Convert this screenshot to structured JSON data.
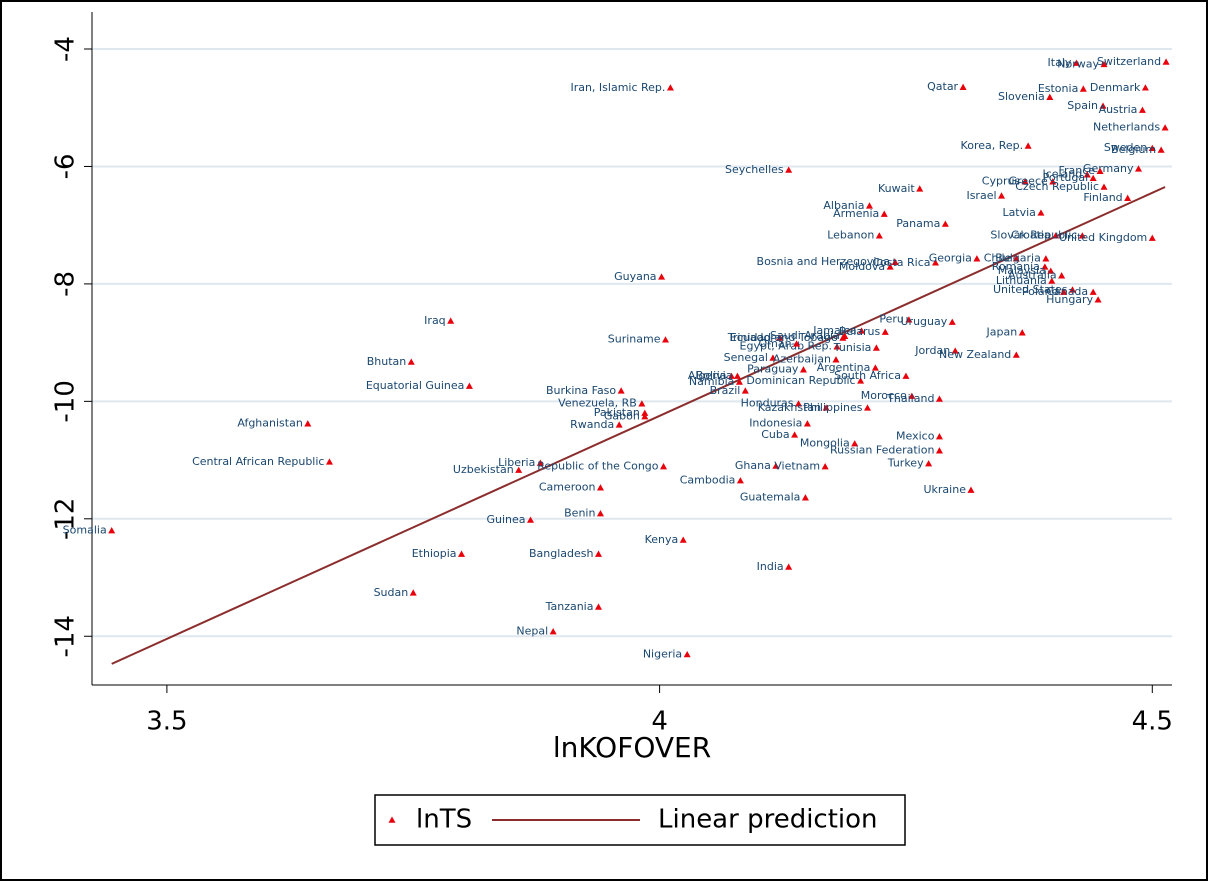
{
  "chart_data": {
    "type": "scatter",
    "xlabel": "lnKOFOVER",
    "xlim": [
      3.424,
      4.52
    ],
    "ylim": [
      -14.83,
      -3.37
    ],
    "xticks": [
      3.5,
      4,
      4.5
    ],
    "yticks": [
      -4,
      -6,
      -8,
      -10,
      -12,
      -14
    ],
    "grid": true,
    "series": [
      {
        "name": "lnTS",
        "type": "scatter",
        "color": "#e8000b",
        "labels": [
          "Somalia",
          "Afghanistan",
          "Central African Republic",
          "Bhutan",
          "Iraq",
          "Equatorial Guinea",
          "Ethiopia",
          "Sudan",
          "Uzbekistan",
          "Liberia",
          "Guinea",
          "Nepal",
          "Cameroon",
          "Benin",
          "Bangladesh",
          "Tanzania",
          "Burkina Faso",
          "Venezuela, RB",
          "Pakistan",
          "Gabon",
          "Rwanda",
          "Republic of the Congo",
          "Guyana",
          "Suriname",
          "Iran, Islamic Rep.",
          "Kenya",
          "Nigeria",
          "Algeria",
          "Bolivia",
          "Namibia",
          "Dominican Republic",
          "Brazil",
          "Honduras",
          "Kazakhstan",
          "Philippines",
          "Indonesia",
          "Cuba",
          "Mongolia",
          "Russian Federation",
          "Mexico",
          "Turkey",
          "Ukraine",
          "Ghana",
          "Vietnam",
          "Cambodia",
          "Guatemala",
          "India",
          "Morocco",
          "Thailand",
          "South Africa",
          "Argentina",
          "Paraguay",
          "Senegal",
          "Azerbaijan",
          "Egypt, Arab Rep.",
          "Tunisia",
          "Oman",
          "Ecuador",
          "Jordan",
          "New Zealand",
          "Japan",
          "Peru",
          "Uruguay",
          "Jamaica",
          "Belarus",
          "Trinidad and Tobago",
          "Saudi Arabia",
          "Bosnia and Herzegovina",
          "Moldova",
          "Costa Rica",
          "Georgia",
          "Lebanon",
          "Armenia",
          "Albania",
          "Panama",
          "Kuwait",
          "Seychelles",
          "Qatar",
          "Korea, Rep.",
          "Slovenia",
          "Estonia",
          "Italy",
          "Norway",
          "Switzerland",
          "Denmark",
          "Spain",
          "Austria",
          "Netherlands",
          "Sweden",
          "Belgium",
          "Germany",
          "France",
          "Cyprus",
          "Greece",
          "Iceland",
          "Portugal",
          "Czech Republic",
          "Finland",
          "Israel",
          "Latvia",
          "Croatia",
          "Slovak Republic",
          "United Kingdom",
          "Chile",
          "Bulgaria",
          "Romania",
          "Malaysia",
          "Australia",
          "Lithuania",
          "United States",
          "Poland",
          "Canada",
          "Hungary"
        ],
        "x": [
          3.444,
          3.643,
          3.665,
          3.748,
          3.788,
          3.807,
          3.799,
          3.75,
          3.857,
          3.879,
          3.869,
          3.892,
          3.94,
          3.94,
          3.938,
          3.938,
          3.961,
          3.982,
          3.985,
          3.985,
          3.959,
          4.004,
          4.002,
          4.006,
          4.011,
          4.024,
          4.028,
          4.073,
          4.079,
          4.081,
          4.204,
          4.087,
          4.141,
          4.169,
          4.211,
          4.15,
          4.137,
          4.198,
          4.284,
          4.284,
          4.273,
          4.316,
          4.118,
          4.168,
          4.082,
          4.148,
          4.131,
          4.256,
          4.284,
          4.25,
          4.219,
          4.146,
          4.115,
          4.179,
          4.18,
          4.22,
          4.139,
          4.122,
          4.3,
          4.362,
          4.368,
          4.253,
          4.297,
          4.205,
          4.229,
          4.186,
          4.188,
          4.239,
          4.234,
          4.28,
          4.322,
          4.223,
          4.228,
          4.213,
          4.29,
          4.264,
          4.131,
          4.308,
          4.374,
          4.396,
          4.43,
          4.423,
          4.451,
          4.514,
          4.493,
          4.45,
          4.49,
          4.513,
          4.5,
          4.509,
          4.486,
          4.447,
          4.371,
          4.399,
          4.434,
          4.44,
          4.451,
          4.475,
          4.347,
          4.387,
          4.402,
          4.429,
          4.5,
          4.362,
          4.392,
          4.391,
          4.397,
          4.408,
          4.398,
          4.419,
          4.41,
          4.44,
          4.445
        ],
        "values": [
          -12.2,
          -10.38,
          -11.03,
          -9.33,
          -8.63,
          -9.74,
          -12.6,
          -13.26,
          -11.17,
          -11.05,
          -12.02,
          -13.92,
          -11.47,
          -11.91,
          -12.6,
          -13.5,
          -9.82,
          -10.04,
          -10.2,
          -10.26,
          -10.4,
          -11.11,
          -7.88,
          -8.95,
          -4.66,
          -12.36,
          -14.31,
          -9.57,
          -9.57,
          -9.67,
          -9.65,
          -9.82,
          -10.04,
          -10.11,
          -10.11,
          -10.38,
          -10.57,
          -10.72,
          -10.84,
          -10.6,
          -11.06,
          -11.51,
          -11.1,
          -11.11,
          -11.35,
          -11.64,
          -12.82,
          -9.91,
          -9.96,
          -9.57,
          -9.43,
          -9.46,
          -9.26,
          -9.29,
          -9.07,
          -9.09,
          -9.02,
          -8.92,
          -9.14,
          -9.21,
          -8.83,
          -8.61,
          -8.65,
          -8.8,
          -8.82,
          -8.92,
          -8.89,
          -7.63,
          -7.71,
          -7.64,
          -7.57,
          -7.18,
          -6.81,
          -6.67,
          -6.98,
          -6.38,
          -6.06,
          -4.65,
          -5.65,
          -4.82,
          -4.68,
          -4.24,
          -4.26,
          -4.22,
          -4.66,
          -4.97,
          -5.04,
          -5.34,
          -5.69,
          -5.72,
          -6.04,
          -6.08,
          -6.26,
          -6.26,
          -6.14,
          -6.2,
          -6.35,
          -6.54,
          -6.5,
          -6.79,
          -7.18,
          -7.18,
          -7.22,
          -7.57,
          -7.57,
          -7.71,
          -7.78,
          -7.86,
          -7.95,
          -8.1,
          -8.14,
          -8.14,
          -8.27
        ]
      },
      {
        "name": "Linear prediction",
        "type": "line",
        "color": "#8b2d2d",
        "x": [
          3.444,
          4.513
        ],
        "values": [
          -14.47,
          -6.35
        ]
      }
    ]
  }
}
